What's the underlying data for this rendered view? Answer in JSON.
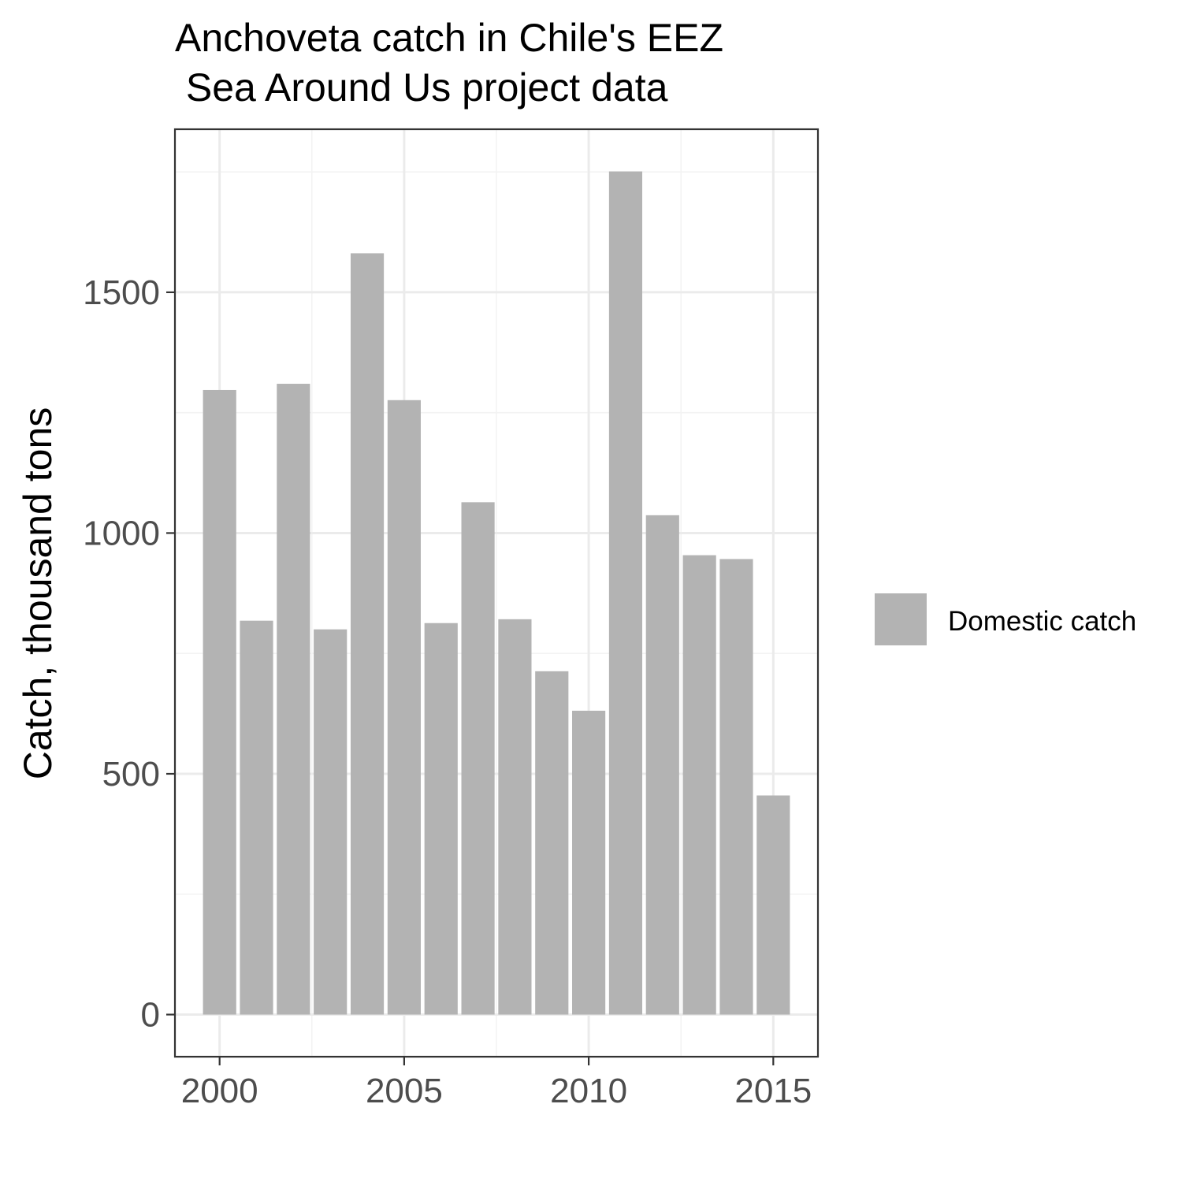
{
  "chart_data": {
    "type": "bar",
    "title": "Anchoveta catch in Chile's EEZ",
    "subtitle": " Sea Around Us project data",
    "xlabel": "",
    "ylabel": "Catch, thousand tons",
    "x": [
      2000,
      2001,
      2002,
      2003,
      2004,
      2005,
      2006,
      2007,
      2008,
      2009,
      2010,
      2011,
      2012,
      2013,
      2014,
      2015
    ],
    "series": [
      {
        "name": "Domestic catch",
        "color": "#b3b3b3",
        "values": [
          1297,
          818,
          1310,
          800,
          1581,
          1276,
          813,
          1064,
          821,
          713,
          631,
          1751,
          1037,
          954,
          946,
          455
        ]
      }
    ],
    "xticks": [
      2000,
      2005,
      2010,
      2015
    ],
    "xlim": [
      1998.79,
      2016.21
    ],
    "yticks": [
      0,
      500,
      1000,
      1500
    ],
    "ylim": [
      -87.5,
      1838.6
    ],
    "grid": true,
    "legend_position": "right",
    "colors": {
      "bar": "#b3b3b3",
      "panel_border": "#333333",
      "grid_major": "#ebebeb",
      "grid_minor": "#f3f3f3",
      "tick_label": "#4d4d4d"
    }
  }
}
